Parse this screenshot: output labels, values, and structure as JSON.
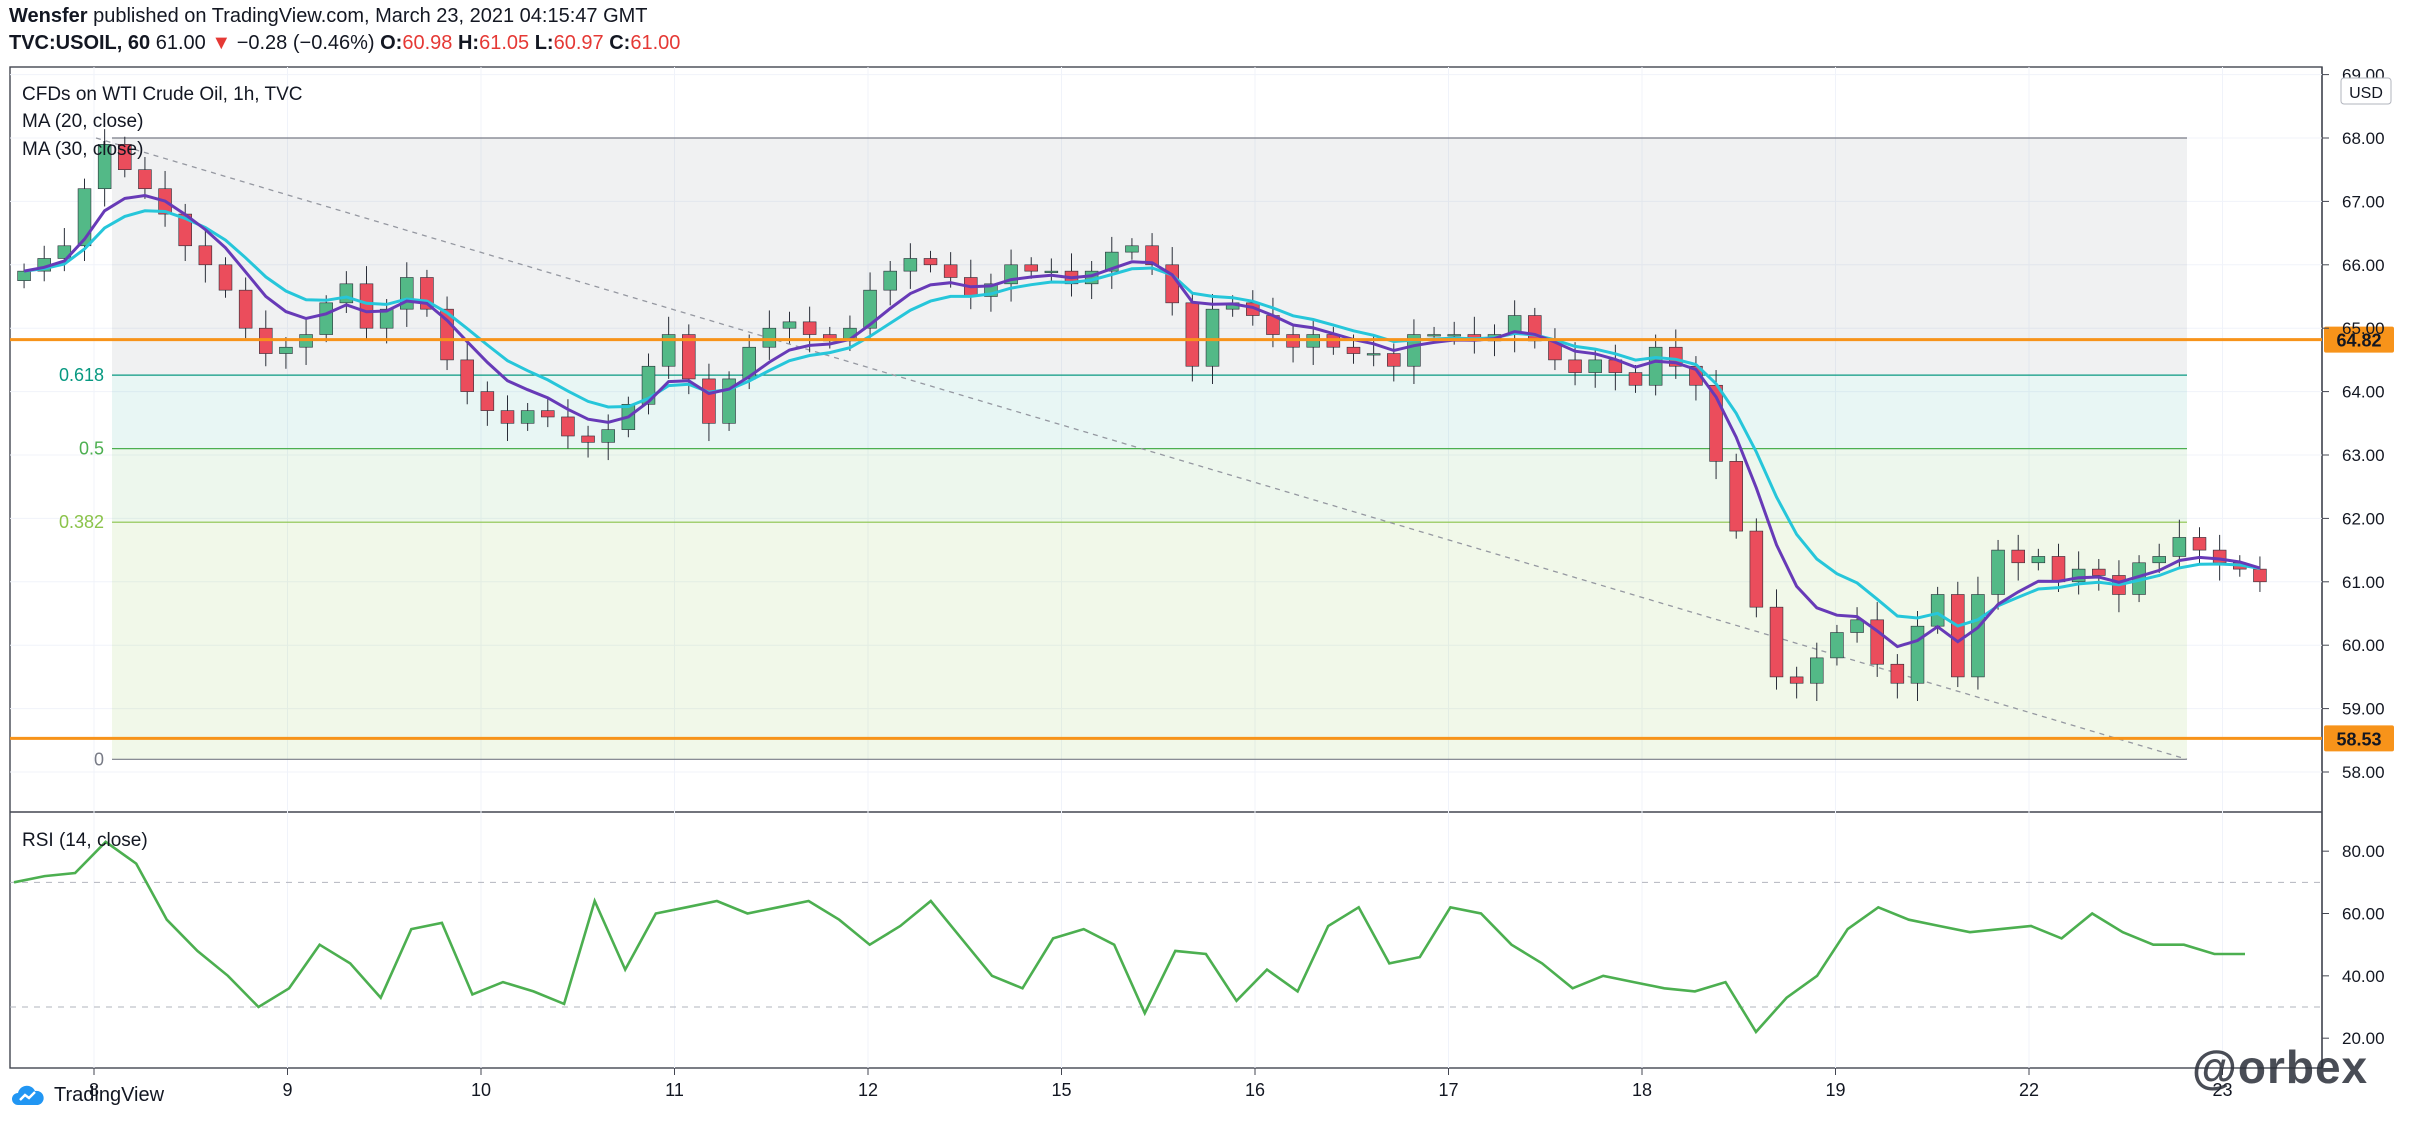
{
  "header": {
    "publisher": "Wensfer",
    "published_text": "published on TradingView.com, March 23, 2021 04:15:47 GMT",
    "symbol": "TVC:USOIL, 60",
    "last": "61.00",
    "change": "−0.28 (−0.46%)",
    "o_label": "O:",
    "o": "60.98",
    "h_label": "H:",
    "h": "61.05",
    "l_label": "L:",
    "l": "60.97",
    "c_label": "C:",
    "c": "61.00"
  },
  "legend": {
    "title": "CFDs on WTI Crude Oil, 1h, TVC",
    "ma20": "MA (20, close)",
    "ma30": "MA (30, close)",
    "rsi": "RSI (14, close)"
  },
  "currency": "USD",
  "footer": {
    "brand": "TradingView",
    "watermark": "@orbex"
  },
  "colors": {
    "up": "#53b987",
    "down": "#eb4d5c",
    "ma20": "#673ab7",
    "ma30": "#26c6da",
    "level": "#f7931a",
    "rsi": "#4caf50"
  },
  "chart_data": [
    {
      "type": "candlestick",
      "title": "CFDs on WTI Crude Oil, 1h, TVC",
      "x_ticks": [
        "8",
        "9",
        "10",
        "11",
        "12",
        "15",
        "16",
        "17",
        "18",
        "19",
        "22",
        "23"
      ],
      "y_ticks": [
        "58.00",
        "59.00",
        "60.00",
        "61.00",
        "62.00",
        "63.00",
        "64.00",
        "65.00",
        "66.00",
        "67.00",
        "68.00",
        "69.00"
      ],
      "ylim": [
        57.8,
        69.0
      ],
      "horizontal_levels": [
        {
          "label": "64.82",
          "value": 64.82
        },
        {
          "label": "58.53",
          "value": 58.53
        }
      ],
      "fibonacci": {
        "from": 58.2,
        "to": 68.0,
        "levels": [
          {
            "label": "0.618",
            "value": 64.26
          },
          {
            "label": "0.5",
            "value": 63.1
          },
          {
            "label": "0.382",
            "value": 61.94
          },
          {
            "label": "0",
            "value": 58.2
          }
        ]
      },
      "close_path": [
        {
          "day": "8",
          "values": [
            65.9,
            66.1,
            66.3,
            67.2,
            67.9,
            67.5,
            67.2,
            66.8,
            66.3,
            66.0,
            65.6,
            65.0,
            64.6,
            64.7
          ]
        },
        {
          "day": "9",
          "values": [
            64.9,
            65.4,
            65.7,
            65.0,
            65.3,
            65.8,
            65.3,
            64.5,
            64.0,
            63.7,
            63.5,
            63.7,
            63.6,
            63.3
          ]
        },
        {
          "day": "10",
          "values": [
            63.2,
            63.4,
            63.8,
            64.4,
            64.9,
            64.2,
            63.5,
            64.2,
            64.7,
            65.0,
            65.1,
            64.9,
            64.8,
            65.0
          ]
        },
        {
          "day": "11",
          "values": [
            65.6,
            65.9,
            66.1,
            66.0,
            65.8,
            65.5,
            65.7,
            66.0,
            65.9,
            65.9,
            65.7,
            65.9,
            66.2,
            66.3
          ]
        },
        {
          "day": "12",
          "values": [
            66.0,
            65.4,
            64.4,
            65.3,
            65.4,
            65.2,
            64.9,
            64.7,
            64.9,
            64.7,
            64.6,
            64.6,
            64.4,
            64.9
          ]
        },
        {
          "day": "15",
          "values": [
            64.9,
            64.9,
            64.8,
            64.9,
            65.2,
            64.8,
            64.5,
            64.3,
            64.5,
            64.3,
            64.1,
            64.7,
            64.4,
            64.1
          ]
        },
        {
          "day": "16",
          "values": [
            62.9,
            61.8,
            60.6,
            59.5,
            59.4,
            59.8,
            60.2,
            60.4,
            59.7,
            59.4,
            60.3,
            60.8,
            59.5,
            60.8
          ]
        },
        {
          "day": "17",
          "values": [
            61.5,
            61.3,
            61.4,
            61.0,
            61.2,
            61.1,
            60.8,
            61.3,
            61.4,
            61.7,
            61.5,
            61.3,
            61.2,
            61.0
          ]
        }
      ],
      "series": [
        {
          "name": "MA (20, close)",
          "color": "#673ab7"
        },
        {
          "name": "MA (30, close)",
          "color": "#26c6da"
        }
      ]
    },
    {
      "type": "line",
      "title": "RSI (14, close)",
      "y_ticks": [
        "20.00",
        "40.00",
        "60.00",
        "80.00"
      ],
      "ylim": [
        13,
        90
      ],
      "guides": [
        70,
        30
      ],
      "values": [
        70,
        72,
        73,
        83,
        76,
        58,
        48,
        40,
        30,
        36,
        50,
        44,
        33,
        55,
        57,
        34,
        38,
        35,
        31,
        64,
        42,
        60,
        62,
        64,
        60,
        62,
        64,
        58,
        50,
        56,
        64,
        52,
        40,
        36,
        52,
        55,
        50,
        28,
        48,
        47,
        32,
        42,
        35,
        56,
        62,
        44,
        46,
        62,
        60,
        50,
        44,
        36,
        40,
        38,
        36,
        35,
        38,
        22,
        33,
        40,
        55,
        62,
        58,
        56,
        54,
        55,
        56,
        52,
        60,
        54,
        50,
        50,
        47,
        47
      ]
    }
  ]
}
